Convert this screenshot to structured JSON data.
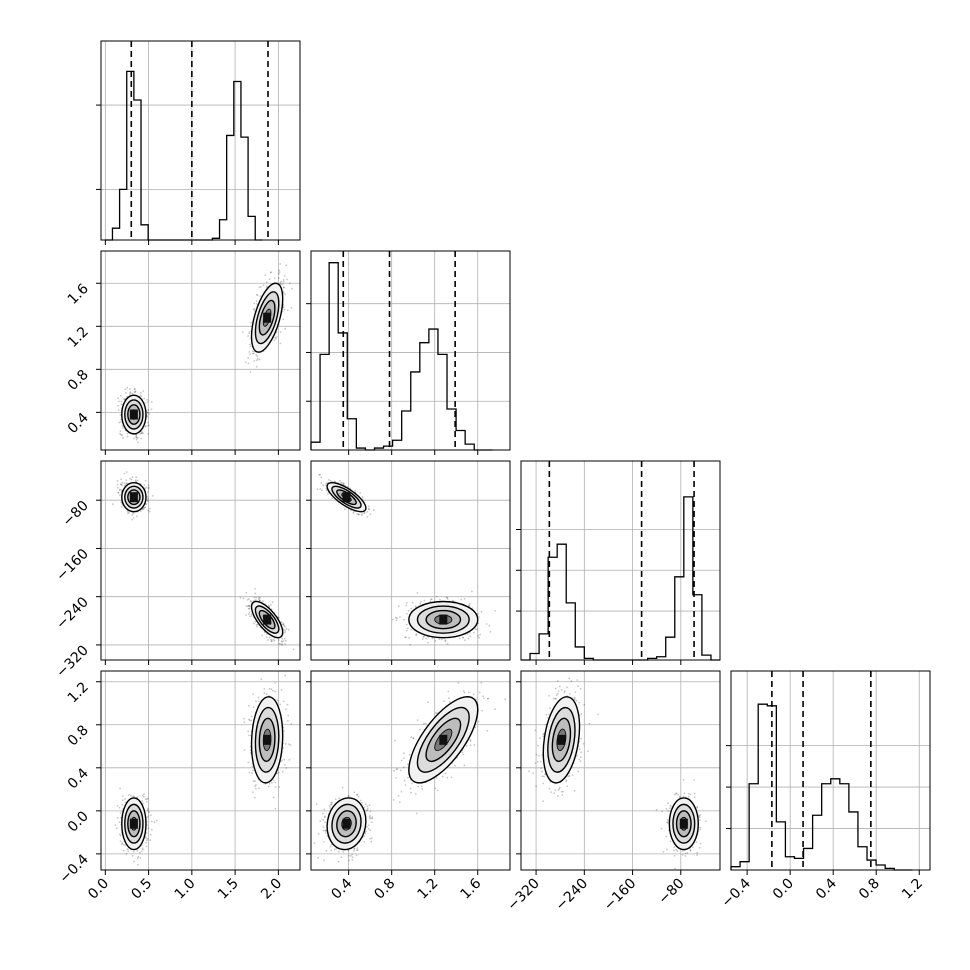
{
  "chart_data": {
    "type": "corner",
    "title": "",
    "parameters": [
      {
        "xlim": [
          -0.05,
          2.25
        ],
        "ticks": [
          0.0,
          0.5,
          1.0,
          1.5,
          2.0
        ],
        "tick_labels": [
          "0.0",
          "0.5",
          "1.0",
          "1.5",
          "2.0"
        ]
      },
      {
        "xlim": [
          0.05,
          1.9
        ],
        "ticks": [
          0.4,
          0.8,
          1.2,
          1.6
        ],
        "tick_labels": [
          "0.4",
          "0.8",
          "1.2",
          "1.6"
        ]
      },
      {
        "xlim": [
          -345,
          -15
        ],
        "ticks": [
          -320,
          -240,
          -160,
          -80
        ],
        "tick_labels": [
          "−320",
          "−240",
          "−160",
          "−80"
        ]
      },
      {
        "xlim": [
          -0.55,
          1.3
        ],
        "ticks": [
          -0.4,
          0.0,
          0.4,
          0.8,
          1.2
        ],
        "tick_labels": [
          "−0.4",
          "0.0",
          "0.4",
          "0.8",
          "1.2"
        ]
      }
    ],
    "quantile_lines": [
      [
        0.3,
        1.0,
        1.88
      ],
      [
        0.35,
        0.78,
        1.39
      ],
      [
        -298,
        -145,
        -58
      ],
      [
        -0.17,
        0.12,
        0.75
      ]
    ],
    "histograms": [
      {
        "bin_start": 0.0,
        "bin_width": 0.0825,
        "counts": [
          0,
          0.07,
          0.3,
          1.0,
          0.83,
          0.09,
          0,
          0,
          0,
          0,
          0,
          0,
          0,
          0,
          0,
          0.01,
          0.12,
          0.62,
          0.94,
          0.61,
          0.14,
          0.0
        ],
        "ylim": [
          0,
          1.18
        ],
        "ticks": [
          0.3,
          0.8
        ]
      },
      {
        "bin_start": 0.05,
        "bin_width": 0.0843,
        "counts": [
          0.04,
          0.49,
          0.96,
          0.6,
          0.16,
          0.01,
          0.0,
          0.01,
          0.02,
          0.05,
          0.2,
          0.4,
          0.55,
          0.62,
          0.49,
          0.21,
          0.1,
          0.03,
          0.0,
          0
        ],
        "ylim": [
          0,
          1.02
        ],
        "ticks": [
          0.25,
          0.5,
          0.75
        ]
      },
      {
        "bin_start": -345,
        "bin_width": 15,
        "counts": [
          0,
          0.04,
          0.16,
          0.63,
          0.71,
          0.35,
          0.08,
          0.01,
          0,
          0,
          0,
          0,
          0,
          0,
          0.01,
          0.02,
          0.14,
          0.51,
          1.0,
          0.4,
          0.03,
          0
        ],
        "ylim": [
          0,
          1.22
        ],
        "ticks": [
          0.3,
          0.55,
          0.8
        ]
      },
      {
        "bin_start": -0.55,
        "bin_width": 0.0843,
        "counts": [
          0.02,
          0.05,
          0.52,
          1.0,
          0.99,
          0.29,
          0.08,
          0.07,
          0.13,
          0.33,
          0.52,
          0.55,
          0.52,
          0.35,
          0.14,
          0.06,
          0.03,
          0.01,
          0.0,
          0
        ],
        "ylim": [
          0,
          1.2
        ],
        "ticks": [
          0.25,
          0.5,
          0.75
        ]
      }
    ],
    "clusters": [
      {
        "mean": [
          0.33,
          0.38,
          -75,
          -0.12
        ],
        "sd": [
          0.07,
          0.09,
          12,
          0.12
        ]
      },
      {
        "mean": [
          1.87,
          1.28,
          -278,
          0.66
        ],
        "sd": [
          0.09,
          0.16,
          15,
          0.2
        ]
      }
    ],
    "pair_correlations": [
      {
        "row": 1,
        "col": 0,
        "rho": [
          0.0,
          0.55
        ]
      },
      {
        "row": 2,
        "col": 0,
        "rho": [
          0.0,
          -0.7
        ]
      },
      {
        "row": 2,
        "col": 1,
        "rho": [
          -0.75,
          0.0
        ]
      },
      {
        "row": 3,
        "col": 0,
        "rho": [
          0.0,
          0.1
        ]
      },
      {
        "row": 3,
        "col": 1,
        "rho": [
          0.1,
          0.7
        ]
      },
      {
        "row": 3,
        "col": 2,
        "rho": [
          0.0,
          0.3
        ]
      }
    ],
    "grid": true,
    "colors": {
      "axes": "#000000",
      "grid": "#b0b0b0",
      "points": "#000000",
      "quantile_line": "#000000"
    }
  }
}
